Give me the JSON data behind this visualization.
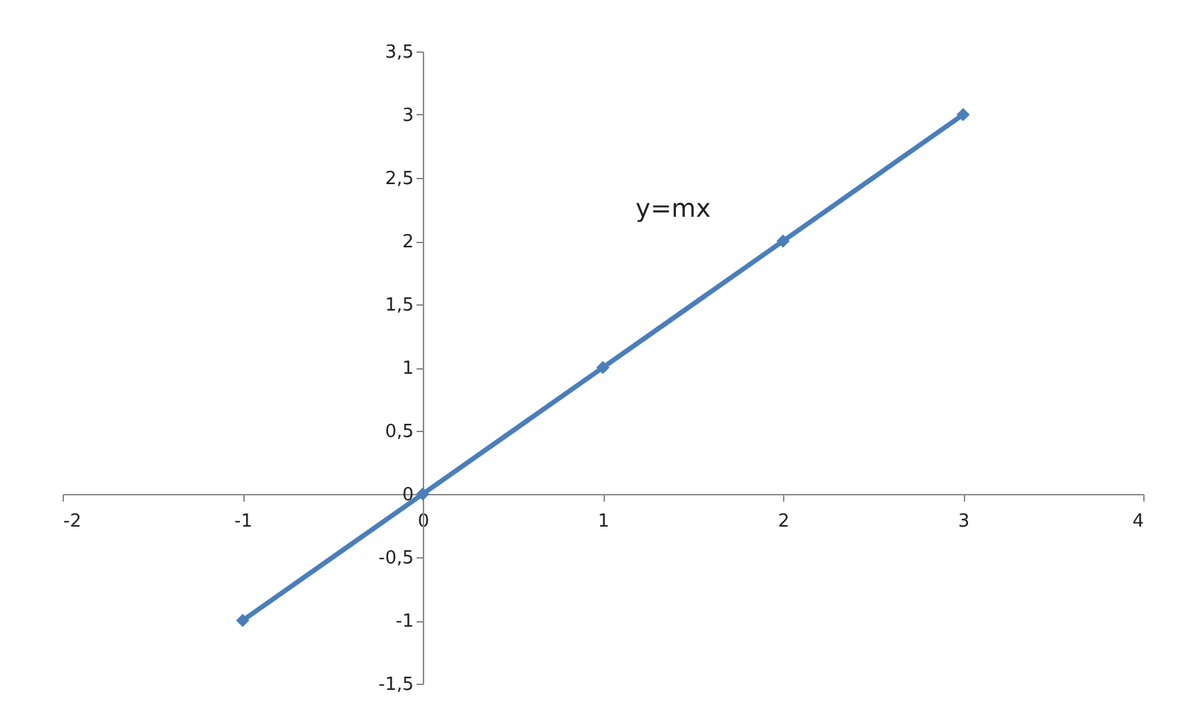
{
  "chart_data": {
    "type": "line",
    "x": [
      -1,
      0,
      1,
      2,
      3
    ],
    "series": [
      {
        "color": "#4a7ebb",
        "values": [
          -1,
          0,
          1,
          2,
          3
        ]
      }
    ],
    "xlim": [
      -2,
      4
    ],
    "xticks": [
      -2,
      -1,
      0,
      1,
      2,
      3,
      4
    ],
    "ylim": [
      -1.5,
      3.5
    ],
    "yticks": [
      {
        "value": -1.5,
        "label": "-1,5"
      },
      -1,
      {
        "value": -0.5,
        "label": "-0,5"
      },
      0,
      {
        "value": 0.5,
        "label": "0,5"
      },
      1,
      {
        "value": 1.5,
        "label": "1,5"
      },
      2,
      {
        "value": 2.5,
        "label": "2,5"
      },
      3,
      {
        "value": 3.5,
        "label": "3,5"
      }
    ],
    "annotations": [
      "y=mx"
    ],
    "marker": "diamond",
    "line_style": "solid",
    "grid": false,
    "legend": false
  }
}
